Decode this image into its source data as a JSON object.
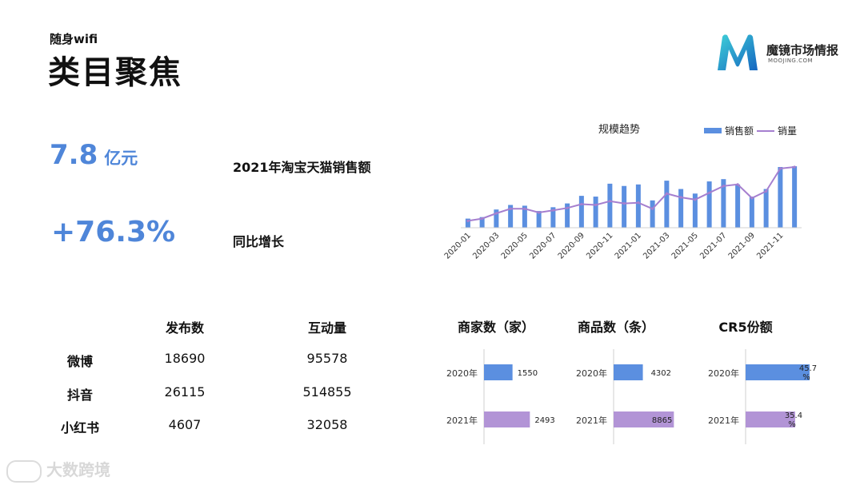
{
  "header": {
    "subtitle": "随身wifi",
    "title": "类目聚焦"
  },
  "brand": {
    "name": "魔镜市场情报",
    "site": "MOOJING.COM",
    "colors": [
      "#1fa3c9",
      "#1565c0",
      "#3fd0d8"
    ]
  },
  "kpis": [
    {
      "value": "7.8",
      "unit": "亿元",
      "label": "2021年淘宝天猫销售额"
    },
    {
      "value": "+76.3%",
      "unit": "",
      "label": "同比增长"
    }
  ],
  "social_table": {
    "headers": [
      "发布数",
      "互动量"
    ],
    "rows": [
      {
        "platform": "微博",
        "posts": "18690",
        "interactions": "95578"
      },
      {
        "platform": "抖音",
        "posts": "26115",
        "interactions": "514855"
      },
      {
        "platform": "小红书",
        "posts": "4607",
        "interactions": "32058"
      }
    ]
  },
  "watermark": "大数跨境",
  "colors": {
    "accent": "#4f86d9",
    "bar_blue": "#5b8fe0",
    "purple": "#b294d6",
    "line": "#a57fcf"
  },
  "chart_data": [
    {
      "type": "bar",
      "title": "规模趋势",
      "x": [
        "2020-01",
        "2020-02",
        "2020-03",
        "2020-04",
        "2020-05",
        "2020-06",
        "2020-07",
        "2020-08",
        "2020-09",
        "2020-10",
        "2020-11",
        "2020-12",
        "2021-01",
        "2021-02",
        "2021-03",
        "2021-04",
        "2021-05",
        "2021-06",
        "2021-07",
        "2021-08",
        "2021-09",
        "2021-10",
        "2021-11",
        "2021-12"
      ],
      "tick_labels": [
        "2020-01",
        "2020-03",
        "2020-05",
        "2020-07",
        "2020-09",
        "2020-11",
        "2021-01",
        "2021-03",
        "2021-05",
        "2021-07",
        "2021-09",
        "2021-11"
      ],
      "series": [
        {
          "name": "销售额",
          "kind": "bar",
          "values": [
            12,
            14,
            24,
            30,
            29,
            22,
            27,
            32,
            42,
            41,
            58,
            55,
            57,
            36,
            62,
            51,
            45,
            61,
            64,
            57,
            41,
            51,
            80,
            81
          ]
        },
        {
          "name": "销量",
          "kind": "line",
          "values": [
            9,
            12,
            19,
            25,
            25,
            20,
            23,
            26,
            31,
            30,
            35,
            32,
            33,
            25,
            45,
            40,
            37,
            46,
            55,
            57,
            39,
            48,
            78,
            80
          ]
        }
      ],
      "legend": "top-right",
      "ylim": [
        0,
        100
      ],
      "grid": false
    },
    {
      "type": "bar",
      "orientation": "horizontal",
      "title": "商家数（家）",
      "categories": [
        "2020年",
        "2021年"
      ],
      "values": [
        1550,
        2493
      ],
      "value_labels": [
        "1550",
        "2493"
      ]
    },
    {
      "type": "bar",
      "orientation": "horizontal",
      "title": "商品数（条）",
      "categories": [
        "2020年",
        "2021年"
      ],
      "values": [
        4302,
        8865
      ],
      "value_labels": [
        "4302",
        "8865"
      ]
    },
    {
      "type": "bar",
      "orientation": "horizontal",
      "title": "CR5份额",
      "categories": [
        "2020年",
        "2021年"
      ],
      "values": [
        45.7,
        35.4
      ],
      "value_labels": [
        "45.7%",
        "35.4%"
      ]
    }
  ]
}
